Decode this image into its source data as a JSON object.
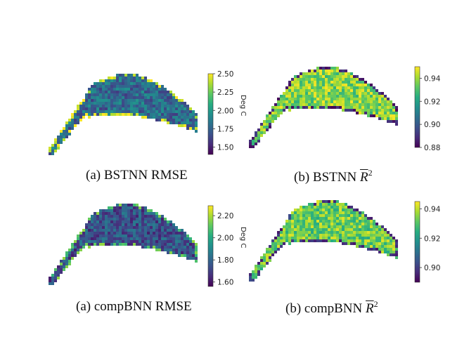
{
  "chart_data": [
    {
      "type": "heatmap",
      "panel": "top-left",
      "caption_prefix": "(a) BSTNN",
      "caption_metric": "RMSE",
      "colorbar": {
        "label": "Deg C",
        "ticks": [
          "1.50",
          "1.75",
          "2.00",
          "2.25",
          "2.50"
        ],
        "range": [
          1.4,
          2.5
        ]
      },
      "colormap": "viridis",
      "dominant_level": 0.35,
      "edge_level": 0.95
    },
    {
      "type": "heatmap",
      "panel": "top-right",
      "caption_prefix": "(b) BSTNN",
      "caption_metric": "R",
      "caption_exp": "2",
      "colorbar": {
        "label": "",
        "ticks": [
          "0.88",
          "0.90",
          "0.92",
          "0.94"
        ],
        "range": [
          0.88,
          0.95
        ]
      },
      "colormap": "viridis",
      "dominant_level": 0.82,
      "edge_level": 0.1
    },
    {
      "type": "heatmap",
      "panel": "bottom-left",
      "caption_prefix": "(a) compBNN",
      "caption_metric": "RMSE",
      "colorbar": {
        "label": "Deg C",
        "ticks": [
          "1.60",
          "1.80",
          "2.00",
          "2.20"
        ],
        "range": [
          1.56,
          2.29
        ]
      },
      "colormap": "viridis",
      "dominant_level": 0.25,
      "edge_level": 0.75
    },
    {
      "type": "heatmap",
      "panel": "bottom-right",
      "caption_prefix": "(b) compBNN",
      "caption_metric": "R",
      "caption_exp": "2",
      "colorbar": {
        "label": "",
        "ticks": [
          "0.90",
          "0.92",
          "0.94"
        ],
        "range": [
          0.89,
          0.945
        ]
      },
      "colormap": "viridis",
      "dominant_level": 0.78,
      "edge_level": 0.15
    }
  ],
  "colors": {
    "viridis": [
      "#440154",
      "#472c7a",
      "#3b518b",
      "#2c718e",
      "#21908d",
      "#27ad81",
      "#5cc863",
      "#aadc32",
      "#fde725"
    ]
  }
}
